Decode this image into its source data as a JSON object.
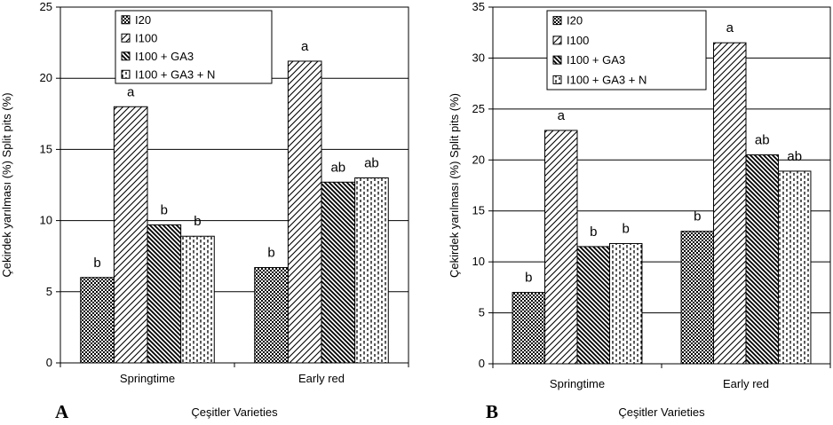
{
  "chart_data": [
    {
      "panel_label": "A",
      "type": "bar",
      "categories": [
        "Springtime",
        "Early red"
      ],
      "series": [
        {
          "name": "I20",
          "values": [
            6.0,
            6.7
          ],
          "significance": [
            "b",
            "b"
          ]
        },
        {
          "name": "I100",
          "values": [
            18.0,
            21.2
          ],
          "significance": [
            "a",
            "a"
          ]
        },
        {
          "name": "I100 + GA3",
          "values": [
            9.7,
            12.7
          ],
          "significance": [
            "b",
            "ab"
          ]
        },
        {
          "name": "I100 + GA3 + N",
          "values": [
            8.9,
            13.0
          ],
          "significance": [
            "b",
            "ab"
          ]
        }
      ],
      "ylabel": "Çekirdek yarılması (%) Split pits (%)",
      "xlabel": "Çeşitler  Varieties",
      "ylim": [
        0,
        25
      ],
      "yticks": [
        0,
        5,
        10,
        15,
        20,
        25
      ],
      "grid": true,
      "legend": "top-center"
    },
    {
      "panel_label": "B",
      "type": "bar",
      "categories": [
        "Springtime",
        "Early red"
      ],
      "series": [
        {
          "name": "I20",
          "values": [
            7.0,
            13.0
          ],
          "significance": [
            "b",
            "b"
          ]
        },
        {
          "name": "I100",
          "values": [
            22.9,
            31.5
          ],
          "significance": [
            "a",
            "a"
          ]
        },
        {
          "name": "I100 + GA3",
          "values": [
            11.5,
            20.5
          ],
          "significance": [
            "b",
            "ab"
          ]
        },
        {
          "name": "I100 + GA3 + N",
          "values": [
            11.8,
            18.9
          ],
          "significance": [
            "b",
            "ab"
          ]
        }
      ],
      "ylabel": "Çekirdek yarılması (%) Split pits (%)",
      "xlabel": "Çeşitler  Varieties",
      "ylim": [
        0,
        35
      ],
      "yticks": [
        0,
        5,
        10,
        15,
        20,
        25,
        30,
        35
      ],
      "grid": true,
      "legend": "top-center"
    }
  ]
}
